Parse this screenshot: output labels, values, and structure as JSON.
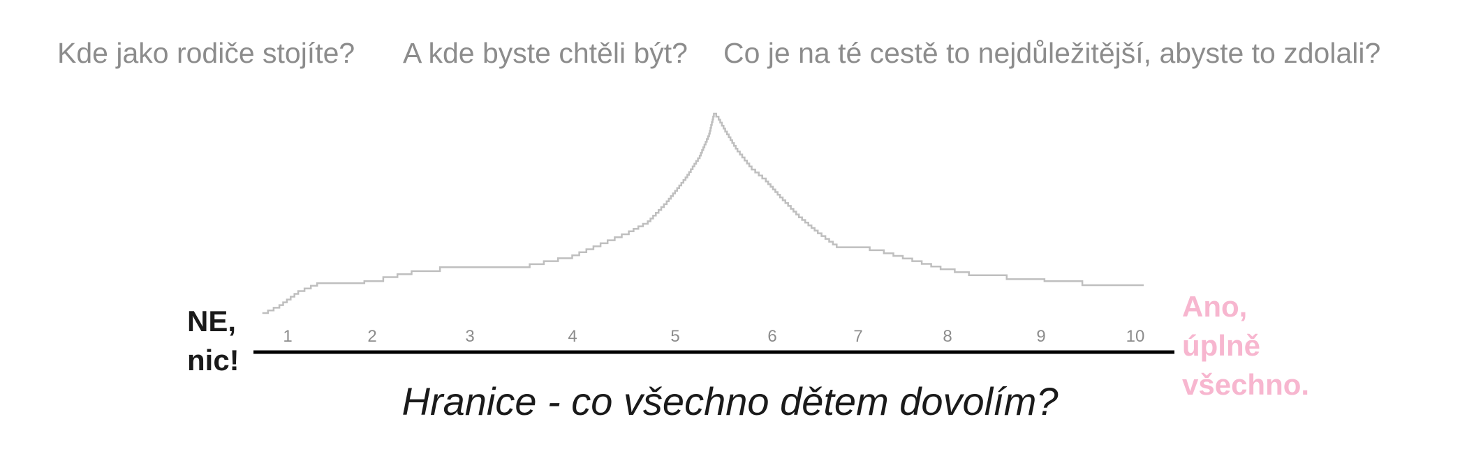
{
  "questions": [
    "Kde jako rodiče stojíte?",
    "A kde byste chtěli být?",
    "Co je na té cestě to nejdůležitější, abyste to zdolali?"
  ],
  "scale": {
    "left_end": [
      "NE,",
      "nic!"
    ],
    "right_end": [
      "Ano,",
      "úplně",
      "všechno."
    ],
    "right_end_color": "#f7b6cf"
  },
  "chart_data": {
    "type": "line",
    "title": "Hranice - co všechno dětem dovolím?",
    "xlabel": "",
    "ylabel": "",
    "xlim": [
      0.7,
      10.05
    ],
    "ylim": [
      0,
      10
    ],
    "x_ticks": [
      "1",
      "2",
      "3",
      "4",
      "5",
      "6",
      "7",
      "8",
      "9",
      "10"
    ],
    "grid": false,
    "line_color": "#bfbfbf",
    "axis_color": "#000000",
    "series": [
      {
        "x": [
          0.72,
          0.9,
          1.1,
          1.3,
          1.5,
          1.8,
          2.0,
          2.3,
          2.6,
          3.0,
          3.4,
          3.7,
          4.0,
          4.3,
          4.6,
          4.8,
          5.0,
          5.2,
          5.35,
          5.45,
          5.5,
          5.55,
          5.62,
          5.75,
          5.9,
          6.05,
          6.2,
          6.4,
          6.6,
          6.8,
          7.0,
          7.3,
          7.6,
          7.9,
          8.2,
          8.6,
          9.0,
          9.4,
          9.8,
          10.05
        ],
        "y": [
          0.0,
          0.4,
          1.1,
          1.5,
          1.5,
          1.6,
          1.8,
          2.1,
          2.3,
          2.3,
          2.3,
          2.6,
          2.9,
          3.5,
          4.1,
          4.6,
          5.6,
          6.8,
          7.9,
          9.0,
          10.0,
          9.7,
          9.1,
          8.1,
          7.2,
          6.6,
          5.8,
          4.8,
          4.0,
          3.3,
          3.3,
          3.0,
          2.6,
          2.2,
          1.9,
          1.7,
          1.6,
          1.4,
          1.4,
          1.4
        ]
      }
    ]
  }
}
